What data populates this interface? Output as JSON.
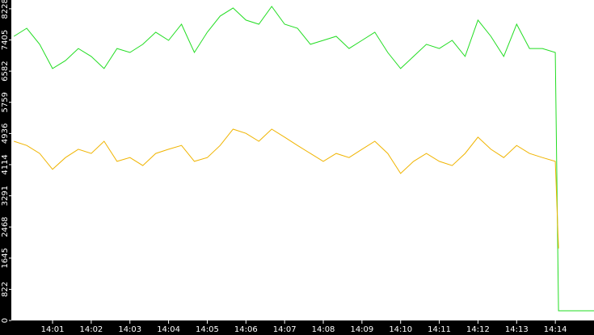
{
  "chart_data": {
    "type": "line",
    "x": [
      "14:00:00",
      "14:00:20",
      "14:00:40",
      "14:01:00",
      "14:01:20",
      "14:01:40",
      "14:02:00",
      "14:02:20",
      "14:02:40",
      "14:03:00",
      "14:03:20",
      "14:03:40",
      "14:04:00",
      "14:04:20",
      "14:04:40",
      "14:05:00",
      "14:05:20",
      "14:05:40",
      "14:06:00",
      "14:06:20",
      "14:06:40",
      "14:07:00",
      "14:07:20",
      "14:07:40",
      "14:08:00",
      "14:08:20",
      "14:08:40",
      "14:09:00",
      "14:09:20",
      "14:09:40",
      "14:10:00",
      "14:10:20",
      "14:10:40",
      "14:11:00",
      "14:11:20",
      "14:11:40",
      "14:12:00",
      "14:12:20",
      "14:12:40",
      "14:13:00",
      "14:13:20",
      "14:13:40",
      "14:14:00",
      "14:14:05",
      "14:15:00"
    ],
    "series": [
      {
        "name": "green",
        "color": "#22dd22",
        "values": [
          7500,
          7715,
          7290,
          6650,
          6860,
          7180,
          6970,
          6650,
          7180,
          7075,
          7290,
          7610,
          7395,
          7820,
          7075,
          7610,
          8035,
          8250,
          7930,
          7820,
          8290,
          7820,
          7715,
          7290,
          7395,
          7500,
          7180,
          7395,
          7610,
          7075,
          6650,
          6970,
          7290,
          7180,
          7395,
          6970,
          7930,
          7500,
          6970,
          7820,
          7180,
          7180,
          7075,
          255,
          255
        ]
      },
      {
        "name": "yellow",
        "color": "#f0b400",
        "values": [
          4730,
          4620,
          4410,
          3990,
          4300,
          4520,
          4410,
          4730,
          4200,
          4300,
          4090,
          4410,
          4520,
          4620,
          4200,
          4300,
          4620,
          5050,
          4940,
          4730,
          5050,
          4840,
          4620,
          4410,
          4200,
          4410,
          4300,
          4520,
          4730,
          4410,
          3880,
          4200,
          4410,
          4200,
          4090,
          4410,
          4840,
          4520,
          4300,
          4620,
          4410,
          4300,
          4200,
          1900,
          null
        ]
      }
    ],
    "xlim": [
      "13:59:56",
      "14:15:00"
    ],
    "xticks": [
      "14:01",
      "14:02",
      "14:03",
      "14:04",
      "14:05",
      "14:06",
      "14:07",
      "14:08",
      "14:09",
      "14:10",
      "14:11",
      "14:12",
      "14:13",
      "14:14"
    ],
    "ylim": [
      0,
      8460
    ],
    "yticks": [
      0,
      822,
      1645,
      2468,
      3291,
      4114,
      4936,
      5759,
      6582,
      7405,
      8228
    ]
  }
}
